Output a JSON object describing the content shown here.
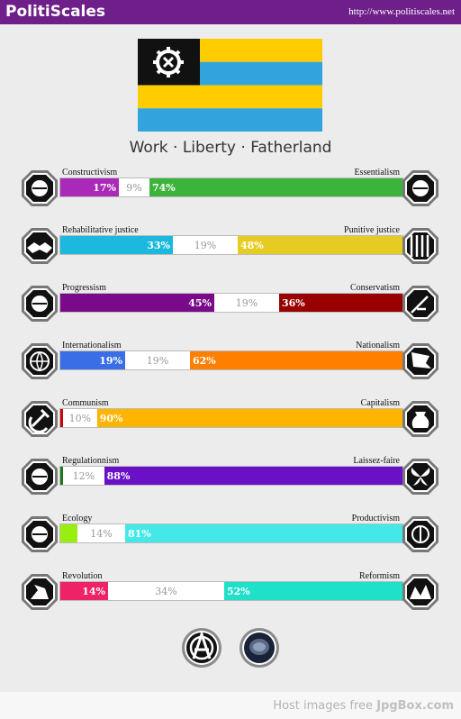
{
  "header": {
    "brand": "PolitiScales",
    "url": "http://www.politiscales.net"
  },
  "flag": {
    "stripe_yellow": "#ffcc00",
    "stripe_blue": "#33a3dd",
    "canton": "#111111"
  },
  "motto": "Work · Liberty · Fatherland",
  "axes": [
    {
      "left_label": "Constructivism",
      "right_label": "Essentialism",
      "left_value": 17,
      "mid_value": 9,
      "right_value": 74,
      "left_text": "17%",
      "mid_text": "9%",
      "right_text": "74%",
      "left_color": "#a929b8",
      "right_color": "#3cb43c",
      "left_icon": "constructivism-icon",
      "right_icon": "essentialism-icon"
    },
    {
      "left_label": "Rehabilitative justice",
      "right_label": "Punitive justice",
      "left_value": 33,
      "mid_value": 19,
      "right_value": 48,
      "left_text": "33%",
      "mid_text": "19%",
      "right_text": "48%",
      "left_color": "#1ab9dd",
      "right_color": "#e6cc22",
      "left_icon": "handshake-icon",
      "right_icon": "prison-bars-icon"
    },
    {
      "left_label": "Progressism",
      "right_label": "Conservatism",
      "left_value": 45,
      "mid_value": 19,
      "right_value": 36,
      "left_text": "45%",
      "mid_text": "19%",
      "right_text": "36%",
      "left_color": "#7a0a8a",
      "right_color": "#990000",
      "left_icon": "progressism-icon",
      "right_icon": "quill-icon"
    },
    {
      "left_label": "Internationalism",
      "right_label": "Nationalism",
      "left_value": 19,
      "mid_value": 19,
      "right_value": 62,
      "left_text": "19%",
      "mid_text": "19%",
      "right_text": "62%",
      "left_color": "#3a6ee6",
      "right_color": "#ff8000",
      "left_icon": "globe-icon",
      "right_icon": "flag-icon"
    },
    {
      "left_label": "Communism",
      "right_label": "Capitalism",
      "left_value": 0,
      "mid_value": 10,
      "right_value": 90,
      "left_text": "",
      "mid_text": "10%",
      "right_text": "90%",
      "left_color": "#cc0000",
      "right_color": "#ffb400",
      "left_icon": "hammer-sickle-icon",
      "right_icon": "money-bag-icon"
    },
    {
      "left_label": "Regulationnism",
      "right_label": "Laissez-faire",
      "left_value": 0,
      "mid_value": 12,
      "right_value": 88,
      "left_text": "",
      "mid_text": "12%",
      "right_text": "88%",
      "left_color": "#1a7a1a",
      "right_color": "#6a11c8",
      "left_icon": "regulation-icon",
      "right_icon": "butterfly-icon"
    },
    {
      "left_label": "Ecology",
      "right_label": "Productivism",
      "left_value": 5,
      "mid_value": 14,
      "right_value": 81,
      "left_text": "",
      "mid_text": "14%",
      "right_text": "81%",
      "left_color": "#99ee11",
      "right_color": "#44e8e8",
      "left_icon": "ecology-icon",
      "right_icon": "factory-icon"
    },
    {
      "left_label": "Revolution",
      "right_label": "Reformism",
      "left_value": 14,
      "mid_value": 34,
      "right_value": 52,
      "left_text": "14%",
      "mid_text": "34%",
      "right_text": "52%",
      "left_color": "#ee2266",
      "right_color": "#1fe0c8",
      "left_icon": "revolution-icon",
      "right_icon": "reformism-icon"
    }
  ],
  "badges": [
    {
      "icon": "anarchy-icon"
    },
    {
      "icon": "reptile-badge-icon"
    }
  ],
  "footer": {
    "host_text": "Host images free ",
    "host_brand": "JpgBox.com"
  }
}
